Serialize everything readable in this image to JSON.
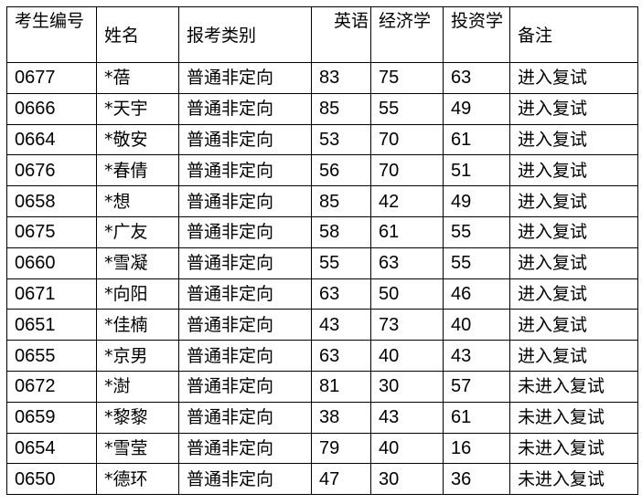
{
  "headers": [
    "考生编号",
    "姓名",
    "报考类别",
    "英语",
    "经济学",
    "投资学",
    "备注"
  ],
  "rows": [
    [
      "0677",
      "*蓓",
      "普通非定向",
      "83",
      "75",
      "63",
      "进入复试"
    ],
    [
      "0666",
      "*天宇",
      "普通非定向",
      "85",
      "55",
      "49",
      "进入复试"
    ],
    [
      "0664",
      "*敬安",
      "普通非定向",
      "53",
      "70",
      "61",
      "进入复试"
    ],
    [
      "0676",
      "*春倩",
      "普通非定向",
      "56",
      "70",
      "51",
      "进入复试"
    ],
    [
      "0658",
      "*想",
      "普通非定向",
      "85",
      "42",
      "49",
      "进入复试"
    ],
    [
      "0675",
      "*广友",
      "普通非定向",
      "58",
      "61",
      "55",
      "进入复试"
    ],
    [
      "0660",
      "*雪凝",
      "普通非定向",
      "55",
      "63",
      "55",
      "进入复试"
    ],
    [
      "0671",
      "*向阳",
      "普通非定向",
      "63",
      "50",
      "46",
      "进入复试"
    ],
    [
      "0651",
      "*佳楠",
      "普通非定向",
      "43",
      "73",
      "40",
      "进入复试"
    ],
    [
      "0655",
      "*京男",
      "普通非定向",
      "63",
      "40",
      "43",
      "进入复试"
    ],
    [
      "0672",
      "*澍",
      "普通非定向",
      "81",
      "30",
      "57",
      "未进入复试"
    ],
    [
      "0659",
      "*黎黎",
      "普通非定向",
      "38",
      "43",
      "61",
      "未进入复试"
    ],
    [
      "0654",
      "*雪莹",
      "普通非定向",
      "79",
      "40",
      "16",
      "未进入复试"
    ],
    [
      "0650",
      "*德环",
      "普通非定向",
      "47",
      "30",
      "36",
      "未进入复试"
    ]
  ]
}
